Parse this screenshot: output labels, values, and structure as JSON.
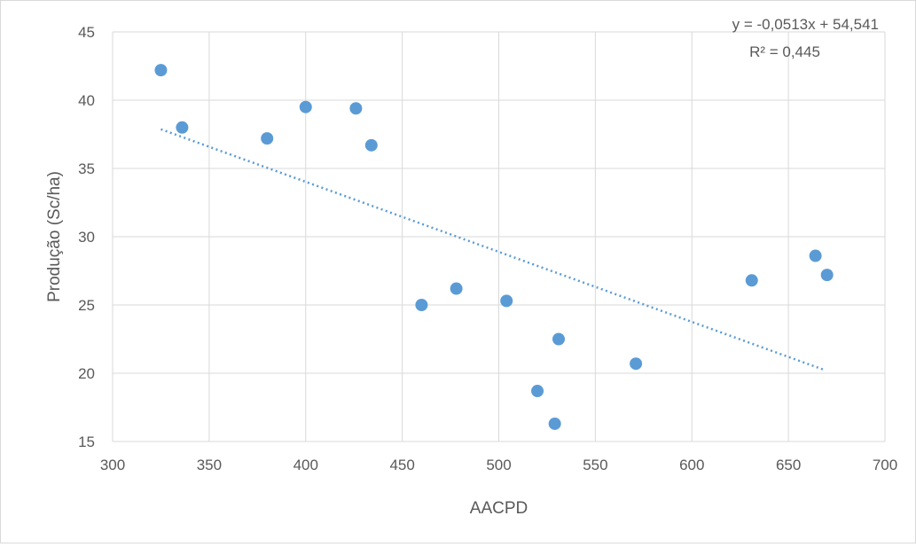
{
  "chart_data": {
    "type": "scatter",
    "xlabel": "AACPD",
    "ylabel": "Produção (Sc/ha)",
    "xlim": [
      300,
      700
    ],
    "ylim": [
      15,
      45
    ],
    "x_ticks": [
      "300",
      "350",
      "400",
      "450",
      "500",
      "550",
      "600",
      "650",
      "700"
    ],
    "y_ticks": [
      "15",
      "20",
      "25",
      "30",
      "35",
      "40",
      "45"
    ],
    "grid": true,
    "marker_color": "#5b9bd5",
    "trendline": {
      "type": "linear",
      "slope": -0.0513,
      "intercept": 54.541,
      "x_range": [
        325,
        669
      ],
      "style": "dotted",
      "color": "#5b9bd5",
      "equation_label": "y = -0,0513x + 54,541",
      "r2_label": "R² = 0,445"
    },
    "series": [
      {
        "points": [
          {
            "x": 325,
            "y": 42.2
          },
          {
            "x": 336,
            "y": 38.0
          },
          {
            "x": 380,
            "y": 37.2
          },
          {
            "x": 400,
            "y": 39.5
          },
          {
            "x": 426,
            "y": 39.4
          },
          {
            "x": 434,
            "y": 36.7
          },
          {
            "x": 460,
            "y": 25.0
          },
          {
            "x": 478,
            "y": 26.2
          },
          {
            "x": 504,
            "y": 25.3
          },
          {
            "x": 520,
            "y": 18.7
          },
          {
            "x": 529,
            "y": 16.3
          },
          {
            "x": 531,
            "y": 22.5
          },
          {
            "x": 571,
            "y": 20.7
          },
          {
            "x": 631,
            "y": 26.8
          },
          {
            "x": 664,
            "y": 28.6
          },
          {
            "x": 670,
            "y": 27.2
          }
        ]
      }
    ]
  }
}
